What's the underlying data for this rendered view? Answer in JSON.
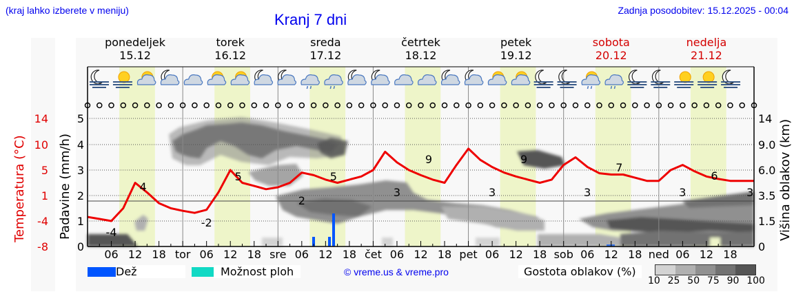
{
  "header": {
    "note": "(kraj lahko izberete v meniju)",
    "title": "Kranj 7 dni",
    "last_update": "Zadnja posodobitev: 15.12.2025 - 00:04"
  },
  "days": [
    {
      "name": "ponedeljek",
      "date": "15.12",
      "weekend": false
    },
    {
      "name": "torek",
      "date": "16.12",
      "weekend": false
    },
    {
      "name": "sreda",
      "date": "17.12",
      "weekend": false
    },
    {
      "name": "četrtek",
      "date": "18.12",
      "weekend": false
    },
    {
      "name": "petek",
      "date": "19.12",
      "weekend": false
    },
    {
      "name": "sobota",
      "date": "20.12",
      "weekend": true
    },
    {
      "name": "nedelja",
      "date": "21.12",
      "weekend": true
    }
  ],
  "axes": {
    "temperature": {
      "label": "Temperatura (°C)",
      "ticks": [
        "14",
        "10",
        "5",
        "1",
        "-4",
        "-8"
      ],
      "color": "#e00000"
    },
    "precipitation": {
      "label": "Padavine (mm/h)",
      "ticks": [
        "5",
        "4",
        "3",
        "2",
        "1",
        "0"
      ]
    },
    "cloud_height": {
      "label": "Višina oblakov (km)",
      "ticks": [
        "14",
        "9.0",
        "6.0",
        "3.5",
        "1.5",
        "0"
      ]
    },
    "x_ticks": [
      "06",
      "12",
      "18",
      "tor",
      "06",
      "12",
      "18",
      "sre",
      "06",
      "12",
      "18",
      "čet",
      "06",
      "12",
      "18",
      "pet",
      "06",
      "12",
      "18",
      "sob",
      "06",
      "12",
      "18",
      "ned",
      "06",
      "12",
      "18"
    ]
  },
  "legend": {
    "rain": {
      "label": "Dež",
      "color": "#0055ff"
    },
    "showers": {
      "label": "Možnost ploh",
      "color": "#11d9c4"
    },
    "copyright": "© vreme.us & vreme.pro",
    "cloud_density_label": "Gostota oblakov (%)",
    "cloud_density_ticks": [
      "10",
      "25",
      "50",
      "75",
      "90",
      "100"
    ],
    "cloud_density_colors": [
      "#d3d3d3",
      "#b0b0b0",
      "#909090",
      "#727272",
      "#555555"
    ]
  },
  "icons": [
    "moon-fog",
    "sun-fog",
    "sun-cloud",
    "moon-cloud",
    "cloud",
    "sun-cloud",
    "sun-cloud",
    "moon-cloud",
    "moon-cloud",
    "cloud-rain",
    "cloud-rain",
    "moon-cloud",
    "moon-cloud",
    "cloud",
    "cloud",
    "moon-cloud",
    "moon-cloud",
    "sun-cloud",
    "sun-cloud",
    "moon-fog",
    "moon-fog",
    "sun-cloud-rain",
    "cloud-rain",
    "moon-fog",
    "moon-fog",
    "sun-fog",
    "sun-fog",
    "moon-fog"
  ],
  "chart_data": {
    "type": "line",
    "title": "Kranj 7 dni",
    "xlabel": "",
    "ylabel": "Temperatura (°C)",
    "x_range": [
      "15.12 00:00",
      "22.12 00:00"
    ],
    "series": [
      {
        "name": "Temperatura (°C)",
        "color": "#ee0000",
        "x_hours": [
          0,
          3,
          6,
          9,
          12,
          15,
          18,
          21,
          24,
          27,
          30,
          33,
          36,
          39,
          42,
          45,
          48,
          51,
          54,
          57,
          60,
          63,
          66,
          69,
          72,
          75,
          78,
          81,
          84,
          87,
          90,
          93,
          96,
          99,
          102,
          105,
          108,
          111,
          114,
          117,
          120,
          123,
          126,
          129,
          132,
          135,
          138,
          141,
          144,
          147,
          150,
          153,
          156,
          159,
          162,
          165,
          168
        ],
        "values": [
          -3.2,
          -3.6,
          -4.0,
          -1.5,
          3.0,
          1.5,
          -0.5,
          -1.5,
          -2.0,
          -2.4,
          -1.8,
          1.5,
          5.0,
          3.0,
          2.5,
          2.0,
          2.3,
          3.0,
          4.6,
          4.2,
          3.5,
          3.0,
          3.5,
          4.0,
          5.0,
          8.6,
          6.5,
          5.0,
          4.2,
          3.5,
          3.0,
          6.0,
          9.2,
          7.0,
          5.6,
          4.6,
          4.0,
          3.5,
          3.0,
          3.5,
          6.0,
          7.5,
          5.6,
          4.5,
          4.3,
          4.3,
          3.8,
          3.3,
          3.3,
          5.0,
          6.0,
          4.8,
          4.0,
          3.6,
          3.3,
          3.3,
          3.3
        ]
      },
      {
        "name": "Dež (mm/h)",
        "color": "#0055ff",
        "x_hours": [
          57,
          61,
          62
        ],
        "values": [
          0.4,
          0.4,
          1.3
        ]
      }
    ],
    "annotations": [
      {
        "x_hours": 6,
        "text": "-4"
      },
      {
        "x_hours": 14,
        "text": "4"
      },
      {
        "x_hours": 30,
        "text": "-2"
      },
      {
        "x_hours": 38,
        "text": "5"
      },
      {
        "x_hours": 54,
        "text": "2"
      },
      {
        "x_hours": 62,
        "text": "5"
      },
      {
        "x_hours": 78,
        "text": "3"
      },
      {
        "x_hours": 86,
        "text": "9"
      },
      {
        "x_hours": 102,
        "text": "3"
      },
      {
        "x_hours": 110,
        "text": "9"
      },
      {
        "x_hours": 126,
        "text": "3"
      },
      {
        "x_hours": 134,
        "text": "7"
      },
      {
        "x_hours": 150,
        "text": "3"
      },
      {
        "x_hours": 158,
        "text": "6"
      },
      {
        "x_hours": 167,
        "text": "3"
      }
    ],
    "ylim_temperature": [
      -8,
      14
    ],
    "ylim_precipitation": [
      0,
      5
    ],
    "grid": true,
    "legend_position": "bottom"
  }
}
